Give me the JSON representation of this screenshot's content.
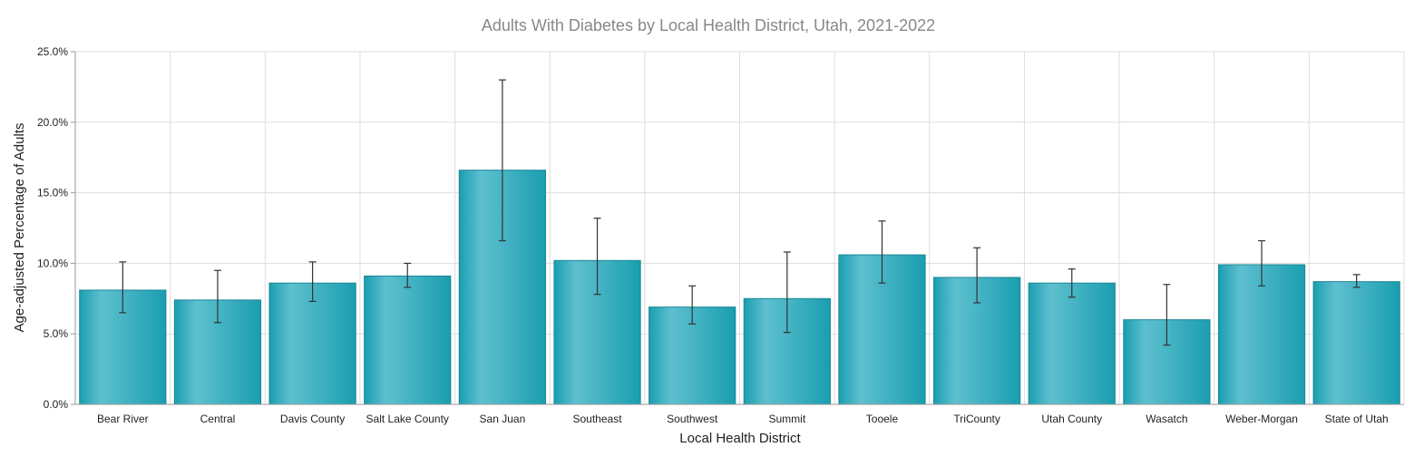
{
  "chart_data": {
    "type": "bar",
    "title": "Adults With Diabetes by Local Health District, Utah, 2021-2022",
    "xlabel": "Local Health District",
    "ylabel": "Age-adjusted Percentage of Adults",
    "ylim": [
      0,
      25
    ],
    "yticks": [
      0,
      5,
      10,
      15,
      20,
      25
    ],
    "ytick_labels": [
      "0.0%",
      "5.0%",
      "10.0%",
      "15.0%",
      "20.0%",
      "25.0%"
    ],
    "grid": true,
    "categories": [
      "Bear River",
      "Central",
      "Davis County",
      "Salt Lake County",
      "San Juan",
      "Southeast",
      "Southwest",
      "Summit",
      "Tooele",
      "TriCounty",
      "Utah County",
      "Wasatch",
      "Weber-Morgan",
      "State of Utah"
    ],
    "values": [
      8.1,
      7.4,
      8.6,
      9.1,
      16.6,
      10.2,
      6.9,
      7.5,
      10.6,
      9.0,
      8.6,
      6.0,
      9.9,
      8.7
    ],
    "error_low": [
      6.5,
      5.8,
      7.3,
      8.3,
      11.6,
      7.8,
      5.7,
      5.1,
      8.6,
      7.2,
      7.6,
      4.2,
      8.4,
      8.3
    ],
    "error_high": [
      10.1,
      9.5,
      10.1,
      10.0,
      23.0,
      13.2,
      8.4,
      10.8,
      13.0,
      11.1,
      9.6,
      8.5,
      11.6,
      9.2
    ],
    "colors": {
      "bar_light": "#5ec0cf",
      "bar_dark": "#1a9eb0",
      "bar_edge": "#1b8795"
    }
  }
}
